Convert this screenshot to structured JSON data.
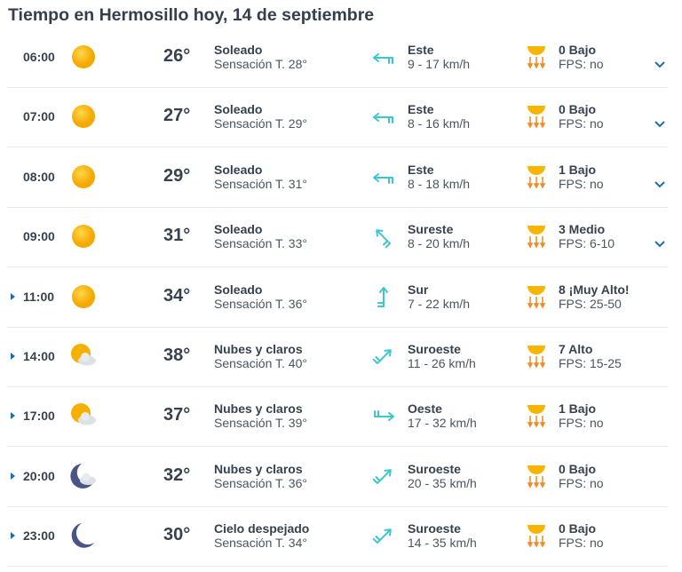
{
  "title": "Tiempo en Hermosillo hoy, 14 de septiembre",
  "colors": {
    "accent": "#1f6ea8",
    "wind": "#3cc7cf",
    "sun": "#f7b500",
    "uv": "#f08a24"
  },
  "rows": [
    {
      "time": "06:00",
      "icon": "sun-icon",
      "temp": "26°",
      "desc": "Soleado",
      "feel": "Sensación T. 28°",
      "dir": "Este",
      "rot": 0,
      "speed": "9 - 17 km/h",
      "uv": "0 Bajo",
      "fps": "FPS: no",
      "expander": "chevron-down"
    },
    {
      "time": "07:00",
      "icon": "sun-icon",
      "temp": "27°",
      "desc": "Soleado",
      "feel": "Sensación T. 29°",
      "dir": "Este",
      "rot": 0,
      "speed": "8 - 16 km/h",
      "uv": "0 Bajo",
      "fps": "FPS: no",
      "expander": "chevron-down"
    },
    {
      "time": "08:00",
      "icon": "sun-icon",
      "temp": "29°",
      "desc": "Soleado",
      "feel": "Sensación T. 31°",
      "dir": "Este",
      "rot": 0,
      "speed": "8 - 18 km/h",
      "uv": "1 Bajo",
      "fps": "FPS: no",
      "expander": "chevron-down"
    },
    {
      "time": "09:00",
      "icon": "sun-icon",
      "temp": "31°",
      "desc": "Soleado",
      "feel": "Sensación T. 33°",
      "dir": "Sureste",
      "rot": 45,
      "speed": "8 - 20 km/h",
      "uv": "3 Medio",
      "fps": "FPS: 6-10",
      "expander": "chevron-down"
    },
    {
      "time": "11:00",
      "icon": "sun-icon",
      "temp": "34°",
      "desc": "Soleado",
      "feel": "Sensación T. 36°",
      "dir": "Sur",
      "rot": 90,
      "speed": "7 - 22 km/h",
      "uv": "8 ¡Muy Alto!",
      "fps": "FPS: 25-50",
      "expander": "triangle"
    },
    {
      "time": "14:00",
      "icon": "sun-cloud-icon",
      "temp": "38°",
      "desc": "Nubes y claros",
      "feel": "Sensación T. 40°",
      "dir": "Suroeste",
      "rot": 135,
      "speed": "11 - 26 km/h",
      "uv": "7 Alto",
      "fps": "FPS: 15-25",
      "expander": "triangle"
    },
    {
      "time": "17:00",
      "icon": "sun-cloud-icon",
      "temp": "37°",
      "desc": "Nubes y claros",
      "feel": "Sensación T. 39°",
      "dir": "Oeste",
      "rot": 180,
      "speed": "17 - 32 km/h",
      "uv": "1 Bajo",
      "fps": "FPS: no",
      "expander": "triangle"
    },
    {
      "time": "20:00",
      "icon": "moon-cloud-icon",
      "temp": "32°",
      "desc": "Nubes y claros",
      "feel": "Sensación T. 36°",
      "dir": "Suroeste",
      "rot": 135,
      "speed": "20 - 35 km/h",
      "uv": "0 Bajo",
      "fps": "FPS: no",
      "expander": "triangle"
    },
    {
      "time": "23:00",
      "icon": "moon-icon",
      "temp": "30°",
      "desc": "Cielo despejado",
      "feel": "Sensación T. 34°",
      "dir": "Suroeste",
      "rot": 135,
      "speed": "14 - 35 km/h",
      "uv": "0 Bajo",
      "fps": "FPS: no",
      "expander": "triangle"
    }
  ]
}
